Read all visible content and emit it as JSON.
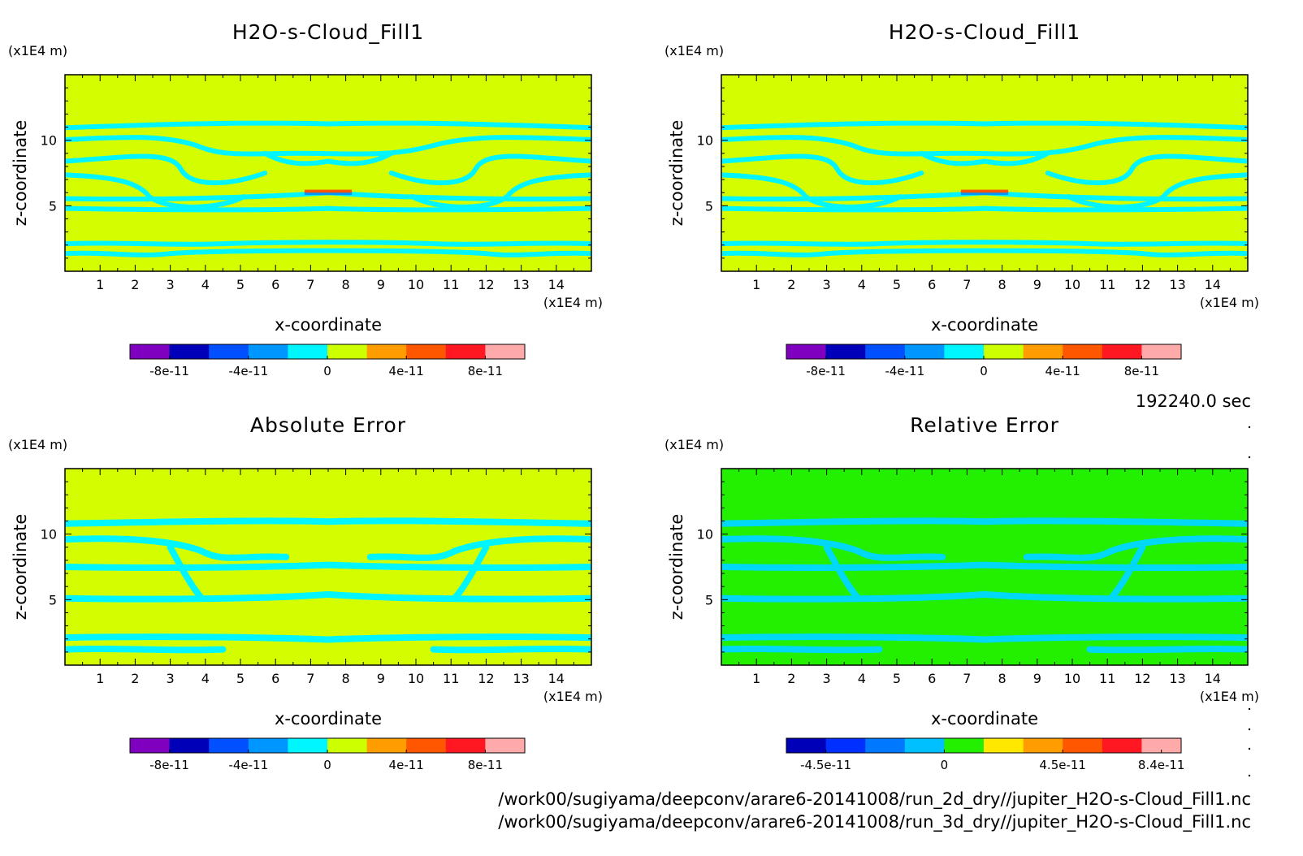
{
  "chart_data": [
    {
      "type": "heatmap",
      "title": "H2O-s-Cloud_Fill1",
      "xlabel": "x-coordinate",
      "x_unit": "(x1E4 m)",
      "ylabel": "z-coordinate",
      "y_unit": "(x1E4 m)",
      "xlim": [
        0,
        15
      ],
      "ylim": [
        0,
        15
      ],
      "xticks": [
        "1",
        "2",
        "3",
        "4",
        "5",
        "6",
        "7",
        "8",
        "9",
        "10",
        "11",
        "12",
        "13",
        "14"
      ],
      "yticks": [
        "5",
        "10"
      ],
      "background": "#d4fe00",
      "contour_color": "#00f6ff",
      "colorbar": {
        "colors": [
          "#7f00bf",
          "#0000b8",
          "#0050ff",
          "#0096ff",
          "#00f6ff",
          "#ccff00",
          "#ff9c00",
          "#ff5600",
          "#ff1722",
          "#ffaaaa"
        ],
        "labels": [
          "-8e-11",
          "-4e-11",
          "0",
          "4e-11",
          "8e-11"
        ]
      }
    },
    {
      "type": "heatmap",
      "title": "H2O-s-Cloud_Fill1",
      "xlabel": "x-coordinate",
      "x_unit": "(x1E4 m)",
      "ylabel": "z-coordinate",
      "y_unit": "(x1E4 m)",
      "xlim": [
        0,
        15
      ],
      "ylim": [
        0,
        15
      ],
      "xticks": [
        "1",
        "2",
        "3",
        "4",
        "5",
        "6",
        "7",
        "8",
        "9",
        "10",
        "11",
        "12",
        "13",
        "14"
      ],
      "yticks": [
        "5",
        "10"
      ],
      "background": "#d4fe00",
      "contour_color": "#00f6ff",
      "colorbar": {
        "colors": [
          "#7f00bf",
          "#0000b8",
          "#0050ff",
          "#0096ff",
          "#00f6ff",
          "#ccff00",
          "#ff9c00",
          "#ff5600",
          "#ff1722",
          "#ffaaaa"
        ],
        "labels": [
          "-8e-11",
          "-4e-11",
          "0",
          "4e-11",
          "8e-11"
        ]
      }
    },
    {
      "type": "heatmap",
      "title": "Absolute Error",
      "xlabel": "x-coordinate",
      "x_unit": "(x1E4 m)",
      "ylabel": "z-coordinate",
      "y_unit": "(x1E4 m)",
      "xlim": [
        0,
        15
      ],
      "ylim": [
        0,
        15
      ],
      "xticks": [
        "1",
        "2",
        "3",
        "4",
        "5",
        "6",
        "7",
        "8",
        "9",
        "10",
        "11",
        "12",
        "13",
        "14"
      ],
      "yticks": [
        "5",
        "10"
      ],
      "background": "#d4fe00",
      "contour_color": "#00f6ff",
      "colorbar": {
        "colors": [
          "#7f00bf",
          "#0000b8",
          "#0050ff",
          "#0096ff",
          "#00f6ff",
          "#ccff00",
          "#ff9c00",
          "#ff5600",
          "#ff1722",
          "#ffaaaa"
        ],
        "labels": [
          "-8e-11",
          "-4e-11",
          "0",
          "4e-11",
          "8e-11"
        ]
      }
    },
    {
      "type": "heatmap",
      "title": "Relative Error",
      "xlabel": "x-coordinate",
      "x_unit": "(x1E4 m)",
      "ylabel": "z-coordinate",
      "y_unit": "(x1E4 m)",
      "xlim": [
        0,
        15
      ],
      "ylim": [
        0,
        15
      ],
      "xticks": [
        "1",
        "2",
        "3",
        "4",
        "5",
        "6",
        "7",
        "8",
        "9",
        "10",
        "11",
        "12",
        "13",
        "14"
      ],
      "yticks": [
        "5",
        "10"
      ],
      "background": "#22f000",
      "contour_color": "#00d8f8",
      "colorbar": {
        "colors": [
          "#0000b8",
          "#0030ff",
          "#0078ff",
          "#00c0ff",
          "#22f000",
          "#ffe800",
          "#ff9c00",
          "#ff5600",
          "#ff1722",
          "#ffaaaa"
        ],
        "labels": [
          "-4.5e-11",
          "0",
          "4.5e-11",
          "8.4e-11"
        ]
      }
    }
  ],
  "time_label": "192240.0 sec",
  "file_paths": [
    "/work00/sugiyama/deepconv/arare6-20141008/run_2d_dry//jupiter_H2O-s-Cloud_Fill1.nc",
    "/work00/sugiyama/deepconv/arare6-20141008/run_3d_dry//jupiter_H2O-s-Cloud_Fill1.nc"
  ]
}
